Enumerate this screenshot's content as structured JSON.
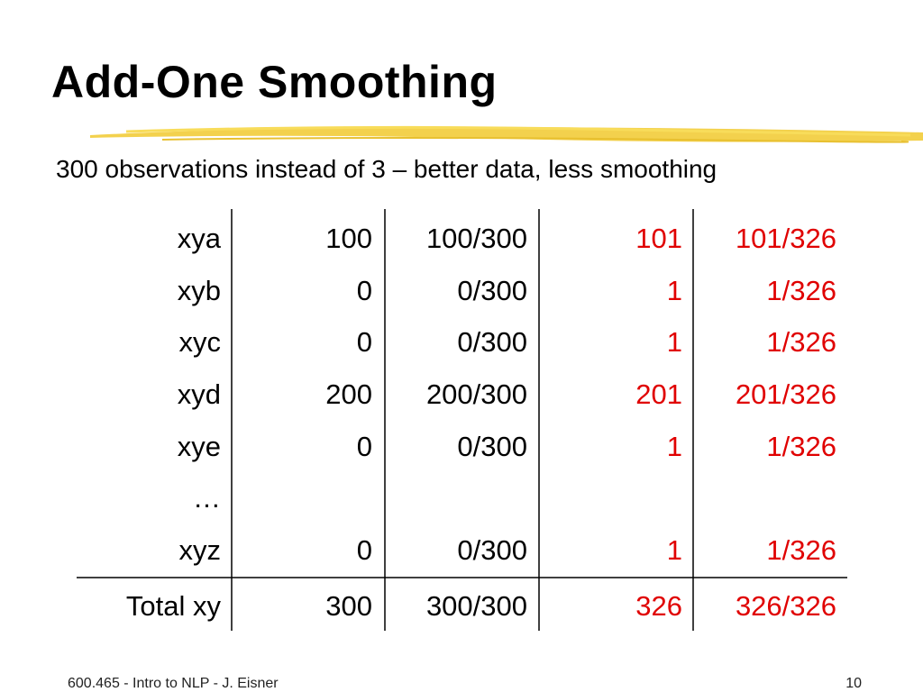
{
  "header": {
    "title": "Add-One Smoothing",
    "subtitle": "300 observations instead of 3 – better data, less smoothing"
  },
  "table": {
    "rows": [
      [
        "xya",
        "100",
        "100/300",
        "101",
        "101/326"
      ],
      [
        "xyb",
        "0",
        "0/300",
        "1",
        "1/326"
      ],
      [
        "xyc",
        "0",
        "0/300",
        "1",
        "1/326"
      ],
      [
        "xyd",
        "200",
        "200/300",
        "201",
        "201/326"
      ],
      [
        "xye",
        "0",
        "0/300",
        "1",
        "1/326"
      ],
      [
        "…"
      ],
      [
        "xyz",
        "0",
        "0/300",
        "1",
        "1/326"
      ],
      [
        "Total xy",
        "300",
        "300/300",
        "326",
        "326/326"
      ]
    ]
  },
  "footer": {
    "left": "600.465 - Intro to NLP - J. Eisner",
    "page": "10"
  }
}
